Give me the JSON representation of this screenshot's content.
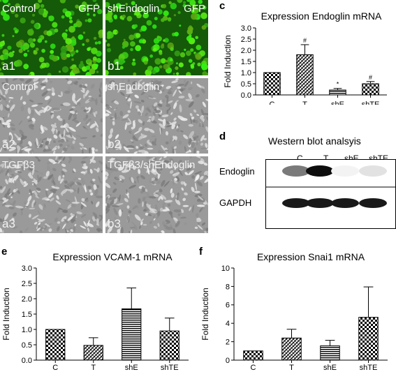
{
  "micrographs": [
    {
      "id": "a1",
      "title": "Control",
      "title2": "GFP",
      "tag": "a1",
      "kind": "gfp"
    },
    {
      "id": "b1",
      "title": "shEndoglin",
      "title2": "GFP",
      "tag": "b1",
      "kind": "gfp"
    },
    {
      "id": "a2",
      "title": "Control",
      "title2": "",
      "tag": "a2",
      "kind": "phase"
    },
    {
      "id": "b2",
      "title": "shEndoglin",
      "title2": "",
      "tag": "b2",
      "kind": "phase"
    },
    {
      "id": "a3",
      "title": "TGFβ3",
      "title2": "",
      "tag": "a3",
      "kind": "phase"
    },
    {
      "id": "b3",
      "title": "TGFβ3/shEndoglin",
      "title2": "",
      "tag": "b3",
      "kind": "phase"
    }
  ],
  "panel_letters": {
    "c": "c",
    "d": "d",
    "e": "e",
    "f": "f"
  },
  "western": {
    "title": "Western blot analsyis",
    "lanes": [
      "C",
      "T",
      "shE",
      "shTE"
    ],
    "rows": [
      {
        "label": "Endoglin",
        "intensities": [
          0.55,
          1.0,
          0.05,
          0.12
        ]
      },
      {
        "label": "GAPDH",
        "intensities": [
          0.95,
          0.95,
          0.95,
          0.95
        ]
      }
    ]
  },
  "chart_data": [
    {
      "panel": "c",
      "type": "bar",
      "title": "Expression Endoglin mRNA",
      "ylabel": "Fold Induction",
      "xlabel": "",
      "categories": [
        "C",
        "T",
        "shE",
        "shTE"
      ],
      "values": [
        1.0,
        1.8,
        0.22,
        0.5
      ],
      "errors": [
        0.0,
        0.45,
        0.07,
        0.1
      ],
      "annotations": [
        "",
        "#",
        "*",
        "#"
      ],
      "ylim": [
        0,
        3.0
      ],
      "yticks": [
        "0.0",
        "0.5",
        "1.0",
        "1.5",
        "2.0",
        "2.5",
        "3.0"
      ],
      "patterns": [
        "checker",
        "diag",
        "horiz",
        "checker"
      ]
    },
    {
      "panel": "e",
      "type": "bar",
      "title": "Expression VCAM-1 mRNA",
      "ylabel": "Fold Induction",
      "xlabel": "",
      "categories": [
        "C",
        "T",
        "shE",
        "shTE"
      ],
      "values": [
        1.0,
        0.48,
        1.67,
        0.95
      ],
      "errors": [
        0.0,
        0.25,
        0.68,
        0.42
      ],
      "annotations": [
        "",
        "",
        "",
        ""
      ],
      "ylim": [
        0,
        3.0
      ],
      "yticks": [
        "0.0",
        "0.5",
        "1.0",
        "1.5",
        "2.0",
        "2.5",
        "3.0"
      ],
      "patterns": [
        "checker",
        "diag",
        "horiz",
        "checker"
      ]
    },
    {
      "panel": "f",
      "type": "bar",
      "title": "Expression Snai1 mRNA",
      "ylabel": "Fold Induction",
      "xlabel": "",
      "categories": [
        "C",
        "T",
        "shE",
        "shTE"
      ],
      "values": [
        1.0,
        2.4,
        1.55,
        4.65
      ],
      "errors": [
        0.0,
        0.95,
        0.6,
        3.3
      ],
      "annotations": [
        "",
        "",
        "",
        ""
      ],
      "ylim": [
        0,
        10
      ],
      "yticks": [
        "0",
        "2",
        "4",
        "6",
        "8",
        "10"
      ],
      "patterns": [
        "checker",
        "diag",
        "horiz",
        "checker"
      ]
    }
  ]
}
